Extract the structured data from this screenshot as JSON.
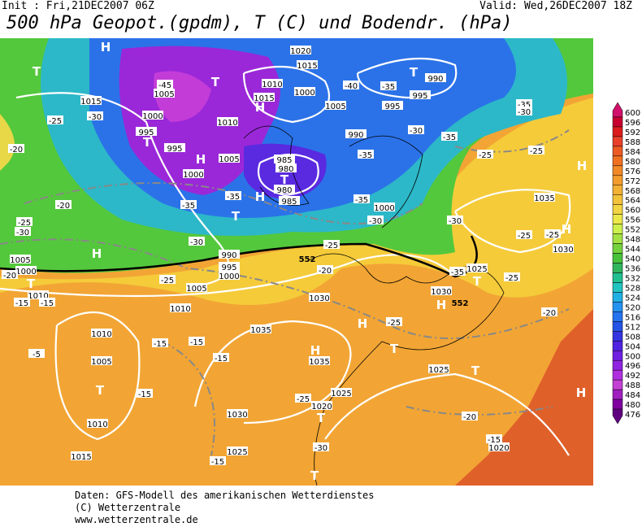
{
  "header": {
    "init": "Init : Fri,21DEC2007 06Z",
    "valid": "Valid: Wed,26DEC2007 18Z",
    "title": "500 hPa Geopot.(gpdm), T (C) und Bodendr. (hPa)"
  },
  "map": {
    "pressure_labels": [
      1020,
      1015,
      1010,
      1015,
      1000,
      1005,
      995,
      995,
      990,
      1015,
      1005,
      1000,
      995,
      995,
      1010,
      1005,
      1000,
      985,
      980,
      980,
      985,
      990,
      1000,
      990,
      995,
      1000,
      1005,
      1010,
      1030,
      1035,
      1035,
      1025,
      1020,
      1030,
      1025,
      1025,
      1035,
      1030,
      1025,
      1030,
      1020,
      1010,
      1005,
      1010,
      1015,
      1010,
      1005,
      1000
    ],
    "temperature_labels": [
      -45,
      -40,
      -35,
      -35,
      -30,
      -30,
      -25,
      -20,
      -30,
      -35,
      -25,
      -25,
      -35,
      -35,
      -35,
      -30,
      -35,
      -30,
      -25,
      -20,
      -25,
      -30,
      -25,
      -25,
      -35,
      -25,
      -20,
      -25,
      -15,
      -15,
      -15,
      -15,
      -25,
      -30,
      -20,
      -15,
      -15,
      -5,
      -15,
      -15,
      -20,
      -25,
      -30,
      -20
    ],
    "contour_labels": [
      552,
      552
    ],
    "markers": [
      "H",
      "T",
      "T",
      "H",
      "T",
      "H",
      "H",
      "T",
      "T",
      "T",
      "H",
      "T",
      "H",
      "H",
      "T",
      "H",
      "H",
      "T",
      "H",
      "T",
      "T",
      "T",
      "H",
      "T"
    ]
  },
  "colorbar": [
    {
      "label": 600,
      "color": "#d0106a"
    },
    {
      "label": 596,
      "color": "#c80030"
    },
    {
      "label": 592,
      "color": "#dc1c1c"
    },
    {
      "label": 588,
      "color": "#e8402a"
    },
    {
      "label": 584,
      "color": "#ec5a24"
    },
    {
      "label": 580,
      "color": "#f07022"
    },
    {
      "label": 576,
      "color": "#f28828"
    },
    {
      "label": 572,
      "color": "#f29c2e"
    },
    {
      "label": 568,
      "color": "#f2b034"
    },
    {
      "label": 564,
      "color": "#f2c23a"
    },
    {
      "label": 560,
      "color": "#f2d442"
    },
    {
      "label": 556,
      "color": "#ece84a"
    },
    {
      "label": 552,
      "color": "#cef04c"
    },
    {
      "label": 548,
      "color": "#a4e244"
    },
    {
      "label": 544,
      "color": "#74d23e"
    },
    {
      "label": 540,
      "color": "#48c23a"
    },
    {
      "label": 536,
      "color": "#30b45c"
    },
    {
      "label": 532,
      "color": "#20c090"
    },
    {
      "label": 528,
      "color": "#20c4c0"
    },
    {
      "label": 524,
      "color": "#20b0e4"
    },
    {
      "label": 520,
      "color": "#2492f0"
    },
    {
      "label": 516,
      "color": "#2474f0"
    },
    {
      "label": 512,
      "color": "#2454e4"
    },
    {
      "label": 508,
      "color": "#3434e0"
    },
    {
      "label": 504,
      "color": "#5024e0"
    },
    {
      "label": 500,
      "color": "#7020e0"
    },
    {
      "label": 496,
      "color": "#9024e0"
    },
    {
      "label": 492,
      "color": "#b030e0"
    },
    {
      "label": 488,
      "color": "#c440d4"
    },
    {
      "label": 484,
      "color": "#a020c0"
    },
    {
      "label": 480,
      "color": "#8000a0"
    },
    {
      "label": 476,
      "color": "#600080"
    }
  ],
  "footer": [
    "Daten: GFS-Modell des amerikanischen Wetterdienstes",
    "(C) Wetterzentrale",
    "www.wetterzentrale.de"
  ]
}
